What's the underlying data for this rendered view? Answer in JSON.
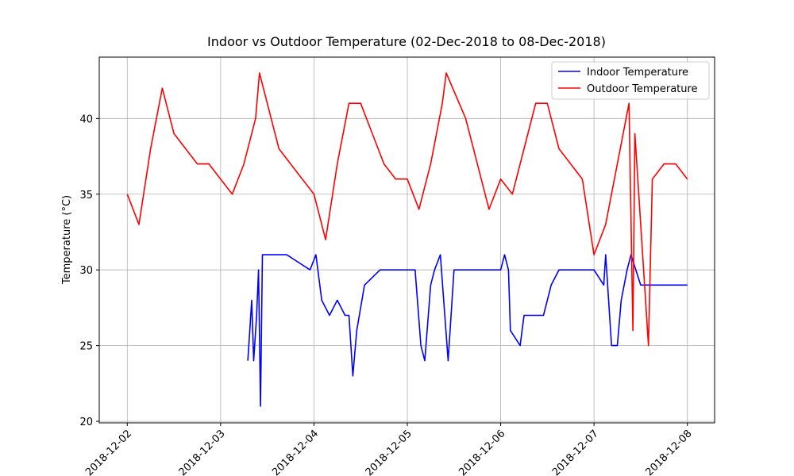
{
  "chart_data": {
    "type": "line",
    "title": "Indoor vs Outdoor Temperature (02-Dec-2018 to 08-Dec-2018)",
    "y_label": "Temperature (°C)",
    "xlim": [
      "2018-12-01 16:48",
      "2018-12-08 07:00"
    ],
    "xticks": [
      "2018-12-02",
      "2018-12-03",
      "2018-12-04",
      "2018-12-05",
      "2018-12-06",
      "2018-12-07",
      "2018-12-08"
    ],
    "ylim": [
      19.9,
      44.05
    ],
    "yticks": [
      20,
      25,
      30,
      35,
      40
    ],
    "grid": true,
    "legend": "upper right",
    "series": [
      {
        "name": "Indoor Temperature",
        "color": "#0000ff",
        "x": [
          "2018-12-03 07:00",
          "2018-12-03 07:30",
          "2018-12-03 08:00",
          "2018-12-03 08:30",
          "2018-12-03 09:15",
          "2018-12-03 09:45",
          "2018-12-03 10:15",
          "2018-12-03 10:45",
          "2018-12-03 17:00",
          "2018-12-03 23:00",
          "2018-12-04 00:30",
          "2018-12-04 02:00",
          "2018-12-04 04:00",
          "2018-12-04 06:00",
          "2018-12-04 08:00",
          "2018-12-04 09:00",
          "2018-12-04 10:00",
          "2018-12-04 11:00",
          "2018-12-04 13:00",
          "2018-12-04 17:00",
          "2018-12-05 02:00",
          "2018-12-05 03:30",
          "2018-12-05 04:30",
          "2018-12-05 06:00",
          "2018-12-05 07:00",
          "2018-12-05 08:30",
          "2018-12-05 10:30",
          "2018-12-05 12:00",
          "2018-12-06 00:00",
          "2018-12-06 01:00",
          "2018-12-06 02:00",
          "2018-12-06 02:30",
          "2018-12-06 05:00",
          "2018-12-06 06:00",
          "2018-12-06 11:00",
          "2018-12-06 13:00",
          "2018-12-06 15:00",
          "2018-12-07 00:00",
          "2018-12-07 02:30",
          "2018-12-07 03:00",
          "2018-12-07 04:30",
          "2018-12-07 06:00",
          "2018-12-07 07:00",
          "2018-12-07 08:30",
          "2018-12-07 09:30",
          "2018-12-07 12:00",
          "2018-12-08 00:00"
        ],
        "values": [
          24,
          26,
          28,
          24,
          27,
          30,
          21,
          31,
          31,
          30,
          31,
          28,
          27,
          28,
          27,
          27,
          23,
          26,
          29,
          30,
          30,
          25,
          24,
          29,
          30,
          31,
          24,
          30,
          30,
          31,
          30,
          26,
          25,
          27,
          27,
          29,
          30,
          30,
          29,
          31,
          25,
          25,
          28,
          30,
          31,
          29,
          29
        ]
      },
      {
        "name": "Outdoor Temperature",
        "color": "#ff0000",
        "x": [
          "2018-12-02 00:00",
          "2018-12-02 03:00",
          "2018-12-02 06:00",
          "2018-12-02 09:00",
          "2018-12-02 12:00",
          "2018-12-02 15:00",
          "2018-12-02 18:00",
          "2018-12-02 21:00",
          "2018-12-03 00:00",
          "2018-12-03 03:00",
          "2018-12-03 06:00",
          "2018-12-03 09:00",
          "2018-12-03 10:00",
          "2018-12-03 15:00",
          "2018-12-03 18:00",
          "2018-12-03 21:00",
          "2018-12-04 00:00",
          "2018-12-04 03:00",
          "2018-12-04 06:00",
          "2018-12-04 09:00",
          "2018-12-04 12:00",
          "2018-12-04 15:00",
          "2018-12-04 18:00",
          "2018-12-04 21:00",
          "2018-12-05 00:00",
          "2018-12-05 03:00",
          "2018-12-05 06:00",
          "2018-12-05 09:00",
          "2018-12-05 10:00",
          "2018-12-05 15:00",
          "2018-12-05 18:00",
          "2018-12-05 21:00",
          "2018-12-06 00:00",
          "2018-12-06 03:00",
          "2018-12-06 06:00",
          "2018-12-06 09:00",
          "2018-12-06 12:00",
          "2018-12-06 15:00",
          "2018-12-06 18:00",
          "2018-12-06 21:00",
          "2018-12-07 00:00",
          "2018-12-07 03:00",
          "2018-12-07 06:00",
          "2018-12-07 09:00",
          "2018-12-07 10:00",
          "2018-12-07 10:30",
          "2018-12-07 14:00",
          "2018-12-07 15:00",
          "2018-12-07 18:00",
          "2018-12-07 21:00",
          "2018-12-08 00:00"
        ],
        "values": [
          35,
          33,
          38,
          42,
          39,
          38,
          37,
          37,
          36,
          35,
          37,
          40,
          43,
          38,
          37,
          36,
          35,
          32,
          37,
          41,
          41,
          39,
          37,
          36,
          36,
          34,
          37,
          41,
          43,
          40,
          37,
          34,
          36,
          35,
          38,
          41,
          41,
          38,
          37,
          36,
          31,
          33,
          37,
          41,
          26,
          39,
          25,
          36,
          37,
          37,
          36
        ]
      }
    ]
  }
}
